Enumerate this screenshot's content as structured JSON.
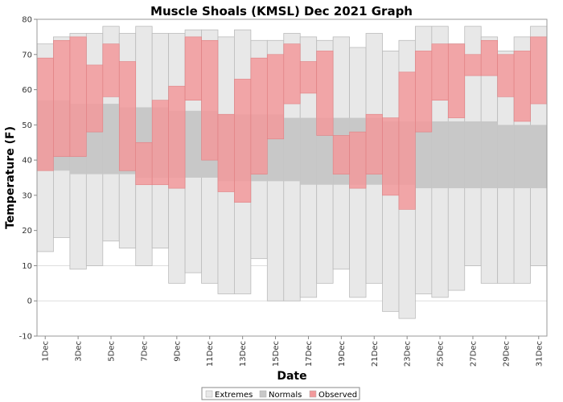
{
  "chart_data": {
    "type": "bar",
    "title": "Muscle Shoals (KMSL) Dec 2021 Graph",
    "xlabel": "Date",
    "ylabel": "Temperature (F)",
    "ylim": [
      -10,
      80
    ],
    "yticks": [
      -10,
      0,
      10,
      20,
      30,
      40,
      50,
      60,
      70,
      80
    ],
    "grid": true,
    "legend_position": "bottom",
    "days": [
      1,
      2,
      3,
      4,
      5,
      6,
      7,
      8,
      9,
      10,
      11,
      12,
      13,
      14,
      15,
      16,
      17,
      18,
      19,
      20,
      21,
      22,
      23,
      24,
      25,
      26,
      27,
      28,
      29,
      30,
      31
    ],
    "x_tick_labels": [
      "1Dec",
      "3Dec",
      "5Dec",
      "7Dec",
      "9Dec",
      "11Dec",
      "13Dec",
      "15Dec",
      "17Dec",
      "19Dec",
      "21Dec",
      "23Dec",
      "25Dec",
      "27Dec",
      "29Dec",
      "31Dec"
    ],
    "x_tick_days": [
      1,
      3,
      5,
      7,
      9,
      11,
      13,
      15,
      17,
      19,
      21,
      23,
      25,
      27,
      29,
      31
    ],
    "series": [
      {
        "name": "Extremes",
        "color": "#e8e8e8",
        "low": [
          14,
          18,
          9,
          10,
          17,
          15,
          10,
          15,
          5,
          8,
          5,
          2,
          2,
          12,
          0,
          0,
          1,
          5,
          9,
          1,
          5,
          -3,
          -5,
          2,
          1,
          3,
          10,
          5,
          5,
          5,
          10
        ],
        "high": [
          73,
          75,
          76,
          76,
          78,
          76,
          78,
          76,
          76,
          77,
          77,
          75,
          77,
          74,
          74,
          76,
          75,
          74,
          75,
          72,
          76,
          71,
          74,
          78,
          78,
          73,
          78,
          75,
          71,
          75,
          78
        ]
      },
      {
        "name": "Normals",
        "color": "#c8c8c8",
        "low": [
          37,
          37,
          36,
          36,
          36,
          36,
          35,
          35,
          35,
          35,
          35,
          34,
          34,
          34,
          34,
          34,
          33,
          33,
          33,
          33,
          33,
          33,
          33,
          32,
          32,
          32,
          32,
          32,
          32,
          32,
          32
        ],
        "high": [
          57,
          57,
          56,
          56,
          56,
          55,
          55,
          55,
          54,
          54,
          54,
          53,
          53,
          53,
          53,
          52,
          52,
          52,
          52,
          52,
          52,
          51,
          51,
          51,
          51,
          51,
          51,
          51,
          50,
          50,
          50
        ]
      },
      {
        "name": "Observed",
        "color": "#f2999b",
        "low": [
          37,
          41,
          41,
          48,
          58,
          37,
          33,
          33,
          32,
          57,
          40,
          31,
          28,
          36,
          46,
          56,
          59,
          47,
          36,
          32,
          36,
          30,
          26,
          48,
          57,
          52,
          64,
          64,
          58,
          51,
          56
        ],
        "high": [
          69,
          74,
          75,
          67,
          73,
          68,
          45,
          57,
          61,
          75,
          74,
          53,
          63,
          69,
          70,
          73,
          68,
          71,
          47,
          48,
          53,
          52,
          65,
          71,
          73,
          73,
          70,
          74,
          70,
          71,
          75
        ]
      }
    ]
  }
}
